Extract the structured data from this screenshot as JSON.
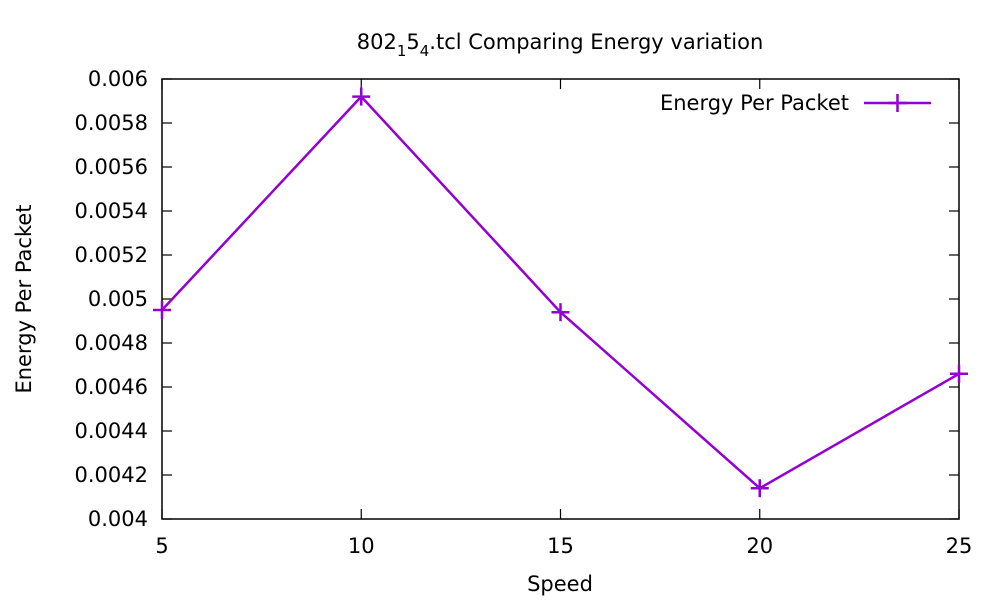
{
  "chart_data": {
    "type": "line",
    "title": {
      "base": "802",
      "sub1": "1",
      "mid": "5",
      "sub2": "4",
      "tail": ".tcl Comparing Energy variation"
    },
    "xlabel": "Speed",
    "ylabel": "Energy Per Packet",
    "x": [
      5,
      10,
      15,
      20,
      25
    ],
    "xlim": [
      5,
      25
    ],
    "ylim": [
      0.004,
      0.006
    ],
    "xticks": [
      5,
      10,
      15,
      20,
      25
    ],
    "xtick_labels": [
      "5",
      "10",
      "15",
      "20",
      "25"
    ],
    "yticks": [
      0.004,
      0.0042,
      0.0044,
      0.0046,
      0.0048,
      0.005,
      0.0052,
      0.0054,
      0.0056,
      0.0058,
      0.006
    ],
    "ytick_labels": [
      "0.004",
      "0.0042",
      "0.0044",
      "0.0046",
      "0.0048",
      "0.005",
      "0.0052",
      "0.0054",
      "0.0056",
      "0.0058",
      "0.006"
    ],
    "grid": false,
    "legend_position": "top-right",
    "series": [
      {
        "name": "Energy Per Packet",
        "values": [
          0.00495,
          0.00592,
          0.00494,
          0.00414,
          0.00466
        ],
        "color": "#9400d3",
        "marker": "plus"
      }
    ]
  }
}
